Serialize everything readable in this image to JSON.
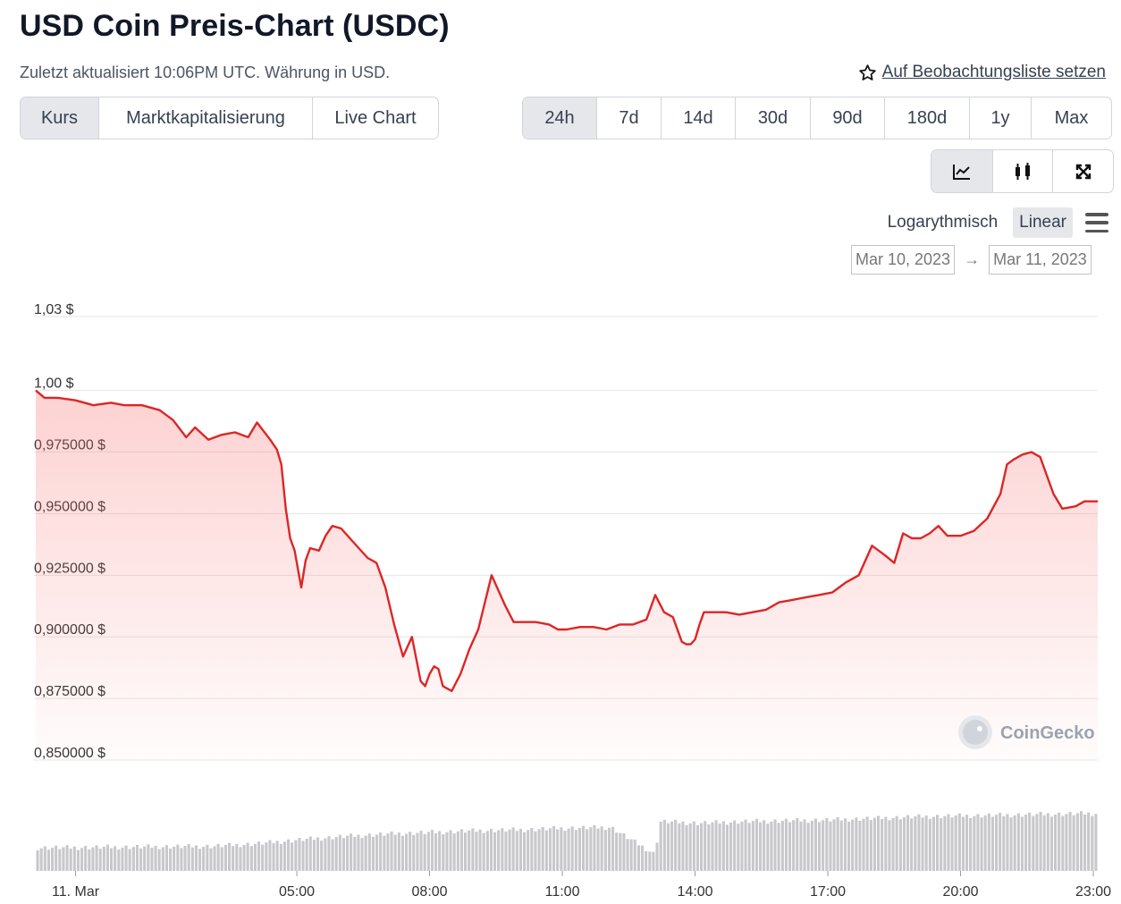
{
  "header": {
    "title": "USD Coin Preis-Chart (USDC)",
    "subtitle": "Zuletzt aktualisiert 10:06PM UTC. Währung in USD.",
    "watchlist_label": "Auf Beobachtungsliste setzen"
  },
  "metric_tabs": [
    {
      "label": "Kurs",
      "active": true
    },
    {
      "label": "Marktkapitalisierung",
      "active": false
    },
    {
      "label": "Live Chart",
      "active": false
    }
  ],
  "range_tabs": [
    {
      "label": "24h",
      "active": true
    },
    {
      "label": "7d",
      "active": false
    },
    {
      "label": "14d",
      "active": false
    },
    {
      "label": "30d",
      "active": false
    },
    {
      "label": "90d",
      "active": false
    },
    {
      "label": "180d",
      "active": false
    },
    {
      "label": "1y",
      "active": false
    },
    {
      "label": "Max",
      "active": false
    }
  ],
  "chart_type_tabs": [
    {
      "icon": "line-chart-icon",
      "active": true
    },
    {
      "icon": "candlestick-icon",
      "active": false
    },
    {
      "icon": "expand-icon",
      "active": false
    }
  ],
  "scale": {
    "log_label": "Logarythmisch",
    "linear_label": "Linear",
    "active": "linear",
    "menu_icon": "hamburger-menu-icon"
  },
  "date_range": {
    "from": "Mar 10, 2023",
    "arrow": "→",
    "to": "Mar 11, 2023"
  },
  "watermark": "CoinGecko",
  "colors": {
    "line": "#dc2626",
    "area": "#f87171",
    "volume": "#c8c8cc",
    "grid": "#e6e6e6",
    "active_tab": "#e5e7eb"
  },
  "chart_data": {
    "type": "line",
    "title": "",
    "xlabel": "",
    "ylabel": "",
    "ylim": [
      0.85,
      1.03
    ],
    "yticks": [
      1.03,
      1.0,
      0.975,
      0.95,
      0.925,
      0.9,
      0.875,
      0.85
    ],
    "ytick_labels": [
      "1,03 $",
      "1,00 $",
      "0,975000 $",
      "0,950000 $",
      "0,925000 $",
      "0,900000 $",
      "0,875000 $",
      "0,850000 $"
    ],
    "xlim_hours": [
      0,
      24
    ],
    "xticks": [
      1,
      6,
      9,
      12,
      15,
      18,
      21,
      24
    ],
    "xtick_labels": [
      "11. Mar",
      "05:00",
      "08:00",
      "11:00",
      "14:00",
      "17:00",
      "20:00",
      "23:00"
    ],
    "grid": true,
    "legend": "none",
    "series": [
      {
        "x": [
          0,
          0.2,
          0.5,
          0.9,
          1.3,
          1.7,
          2.0,
          2.4,
          2.8,
          3.1,
          3.4,
          3.6,
          3.9,
          4.2,
          4.5,
          4.8,
          5.0,
          5.3,
          5.45,
          5.55,
          5.65,
          5.75,
          5.85,
          6.0,
          6.1,
          6.2,
          6.4,
          6.55,
          6.7,
          6.9,
          7.1,
          7.3,
          7.5,
          7.7,
          7.9,
          8.1,
          8.3,
          8.5,
          8.7,
          8.8,
          8.9,
          9.0,
          9.1,
          9.2,
          9.4,
          9.6,
          9.8,
          10.0,
          10.3,
          10.6,
          10.8,
          11.0,
          11.3,
          11.6,
          11.8,
          12.0,
          12.3,
          12.6,
          12.9,
          13.2,
          13.5,
          13.8,
          14.0,
          14.2,
          14.4,
          14.6,
          14.7,
          14.8,
          14.9,
          15.0,
          15.1,
          15.3,
          15.6,
          15.9,
          16.2,
          16.5,
          16.8,
          17.1,
          17.4,
          17.7,
          18.0,
          18.3,
          18.6,
          18.9,
          19.2,
          19.4,
          19.6,
          19.8,
          20.0,
          20.2,
          20.4,
          20.6,
          20.9,
          21.2,
          21.5,
          21.8,
          21.95,
          22.1,
          22.3,
          22.5,
          22.7,
          22.9,
          23.0,
          23.2,
          23.5,
          23.7,
          24.0
        ],
        "values": [
          1.0,
          0.997,
          0.997,
          0.996,
          0.994,
          0.995,
          0.994,
          0.994,
          0.992,
          0.988,
          0.981,
          0.985,
          0.98,
          0.982,
          0.983,
          0.981,
          0.987,
          0.98,
          0.976,
          0.97,
          0.952,
          0.94,
          0.935,
          0.92,
          0.931,
          0.936,
          0.935,
          0.941,
          0.945,
          0.944,
          0.94,
          0.936,
          0.932,
          0.93,
          0.92,
          0.905,
          0.892,
          0.9,
          0.882,
          0.88,
          0.885,
          0.888,
          0.887,
          0.88,
          0.878,
          0.885,
          0.895,
          0.903,
          0.925,
          0.913,
          0.906,
          0.906,
          0.906,
          0.905,
          0.903,
          0.903,
          0.904,
          0.904,
          0.903,
          0.905,
          0.905,
          0.907,
          0.917,
          0.91,
          0.908,
          0.898,
          0.897,
          0.897,
          0.899,
          0.905,
          0.91,
          0.91,
          0.91,
          0.909,
          0.91,
          0.911,
          0.914,
          0.915,
          0.916,
          0.917,
          0.918,
          0.922,
          0.925,
          0.937,
          0.933,
          0.93,
          0.942,
          0.94,
          0.94,
          0.942,
          0.945,
          0.941,
          0.941,
          0.943,
          0.948,
          0.958,
          0.97,
          0.972,
          0.974,
          0.975,
          0.973,
          0.963,
          0.958,
          0.952,
          0.953,
          0.955,
          0.955
        ]
      }
    ],
    "volume": {
      "description_of_trend": "",
      "x": [
        0,
        2,
        4,
        5,
        6,
        7,
        8,
        9,
        10,
        11,
        12,
        13,
        14,
        14.1,
        15,
        16,
        17,
        18,
        19,
        20,
        21,
        22,
        23,
        24
      ],
      "values": [
        0.28,
        0.29,
        0.3,
        0.33,
        0.38,
        0.42,
        0.45,
        0.47,
        0.49,
        0.5,
        0.52,
        0.53,
        0.2,
        0.6,
        0.58,
        0.6,
        0.61,
        0.62,
        0.64,
        0.66,
        0.67,
        0.68,
        0.69,
        0.7
      ]
    }
  }
}
